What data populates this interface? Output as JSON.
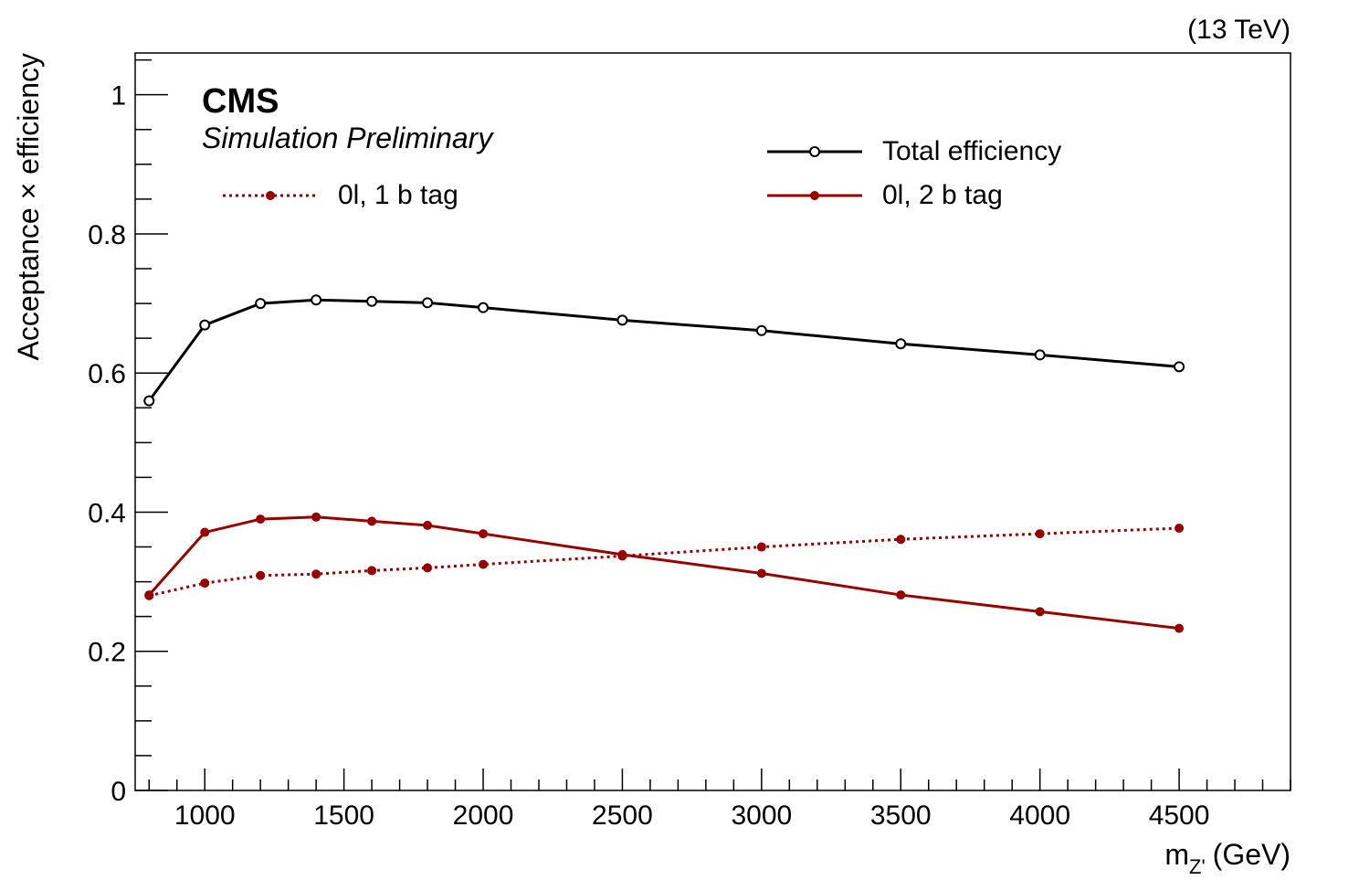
{
  "chart_data": {
    "type": "line",
    "energy_label": "(13 TeV)",
    "experiment": "CMS",
    "status": "Simulation Preliminary",
    "xlabel_main": "m",
    "xlabel_sub": "Z'",
    "xlabel_unit": "(GeV)",
    "ylabel": "Acceptance × efficiency",
    "xlim": [
      750,
      4900
    ],
    "ylim": [
      0,
      1.06
    ],
    "x_ticks": [
      1000,
      1500,
      2000,
      2500,
      3000,
      3500,
      4000,
      4500
    ],
    "x_tick_labels": [
      "1000",
      "1500",
      "2000",
      "2500",
      "3000",
      "3500",
      "4000",
      "4500"
    ],
    "y_ticks": [
      0,
      0.2,
      0.4,
      0.6,
      0.8,
      1
    ],
    "y_tick_labels": [
      "0",
      "0.2",
      "0.4",
      "0.6",
      "0.8",
      "1"
    ],
    "grid": false,
    "x": [
      800,
      1000,
      1200,
      1400,
      1600,
      1800,
      2000,
      2500,
      3000,
      3500,
      4000,
      4500
    ],
    "series": [
      {
        "name": "Total efficiency",
        "color": "#000000",
        "style": "solid",
        "marker": "open-circle",
        "values": [
          0.56,
          0.669,
          0.7,
          0.705,
          0.703,
          0.701,
          0.694,
          0.676,
          0.661,
          0.642,
          0.626,
          0.609
        ]
      },
      {
        "name": "0l, 2 b tag",
        "color": "#990000",
        "style": "solid",
        "marker": "filled-circle",
        "values": [
          0.281,
          0.371,
          0.39,
          0.393,
          0.387,
          0.381,
          0.369,
          0.339,
          0.312,
          0.281,
          0.257,
          0.233
        ]
      },
      {
        "name": "0l, 1 b tag",
        "color": "#990000",
        "style": "dotted",
        "marker": "filled-circle",
        "values": [
          0.28,
          0.298,
          0.309,
          0.311,
          0.316,
          0.32,
          0.325,
          0.337,
          0.35,
          0.361,
          0.369,
          0.377
        ]
      }
    ]
  }
}
